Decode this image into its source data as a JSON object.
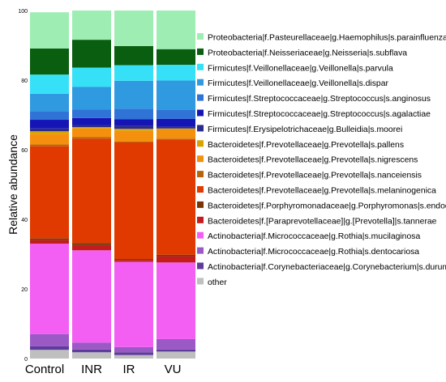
{
  "chart_data": {
    "type": "bar",
    "stacked": true,
    "title": "",
    "xlabel": "",
    "ylabel": "Relative abundance",
    "ylim": [
      0,
      100
    ],
    "yticks": [
      "0",
      "20",
      "40",
      "60",
      "80",
      "100"
    ],
    "grid": false,
    "legend_position": "right",
    "categories": [
      "Control",
      "INR",
      "IR",
      "VU"
    ],
    "series": [
      {
        "name": "other",
        "color": "#bfbfbf",
        "values": [
          2.5,
          1.8,
          1.0,
          2.0
        ]
      },
      {
        "name": "Actinobacteria|f.Corynebacteriaceae|g.Corynebacterium|s.durum",
        "color": "#5e3c99",
        "values": [
          1.0,
          0.8,
          0.8,
          0.6
        ]
      },
      {
        "name": "Actinobacteria|f.Micrococcaceae|g.Rothia|s.dentocariosa",
        "color": "#9b59c6",
        "values": [
          3.5,
          2.0,
          1.5,
          3.0
        ]
      },
      {
        "name": "Actinobacteria|f.Micrococcaceae|g.Rothia|s.mucilaginosa",
        "color": "#f35ef3",
        "values": [
          26.0,
          26.5,
          24.5,
          22.0
        ]
      },
      {
        "name": "Bacteroidetes|f.[Paraprevotellaceae]|g.[Prevotella]|s.tannerae",
        "color": "#c41c1c",
        "values": [
          1.0,
          1.5,
          0.5,
          1.8
        ]
      },
      {
        "name": "Bacteroidetes|f.Porphyromonadaceae|g.Porphyromonas|s.endodontalis",
        "color": "#7a3506",
        "values": [
          0.5,
          0.6,
          0.3,
          0.4
        ]
      },
      {
        "name": "Bacteroidetes|f.Prevotellaceae|g.Prevotella|s.melaninogenica",
        "color": "#e03a00",
        "values": [
          26.5,
          30.0,
          33.5,
          33.0
        ]
      },
      {
        "name": "Bacteroidetes|f.Prevotellaceae|g.Prevotella|s.nanceiensis",
        "color": "#b7650c",
        "values": [
          0.5,
          0.4,
          0.3,
          0.4
        ]
      },
      {
        "name": "Bacteroidetes|f.Prevotellaceae|g.Prevotella|s.nigrescens",
        "color": "#f5900e",
        "values": [
          3.0,
          2.5,
          3.0,
          2.5
        ]
      },
      {
        "name": "Bacteroidetes|f.Prevotellaceae|g.Prevotella|s.pallens",
        "color": "#d9a300",
        "values": [
          0.8,
          0.4,
          0.6,
          0.4
        ]
      },
      {
        "name": "Firmicutes|f.Erysipelotrichaceae|g.Bulleidia|s.moorei",
        "color": "#2b2b8c",
        "values": [
          0.8,
          0.6,
          0.8,
          0.5
        ]
      },
      {
        "name": "Firmicutes|f.Streptococcaceae|g.Streptococcus|s.agalactiae",
        "color": "#1515b5",
        "values": [
          2.5,
          2.0,
          2.0,
          2.3
        ]
      },
      {
        "name": "Firmicutes|f.Streptococcaceae|g.Streptococcus|s.anginosus",
        "color": "#2f73d6",
        "values": [
          2.5,
          2.5,
          3.0,
          2.5
        ]
      },
      {
        "name": "Firmicutes|f.Veillonellaceae|g.Veillonella|s.dispar",
        "color": "#2f9ae0",
        "values": [
          5.0,
          6.5,
          8.0,
          8.5
        ]
      },
      {
        "name": "Firmicutes|f.Veillonellaceae|g.Veillonella|s.parvula",
        "color": "#36e1f7",
        "values": [
          5.5,
          5.5,
          4.5,
          4.5
        ]
      },
      {
        "name": "Proteobacteria|f.Neisseriaceae|g.Neisseria|s.subflava",
        "color": "#0a5e10",
        "values": [
          7.5,
          8.0,
          5.5,
          4.5
        ]
      },
      {
        "name": "Proteobacteria|f.Pasteurellaceae|g.Haemophilus|s.parainfluenzae",
        "color": "#9eeeb4",
        "values": [
          10.4,
          8.4,
          10.2,
          11.1
        ]
      }
    ]
  }
}
